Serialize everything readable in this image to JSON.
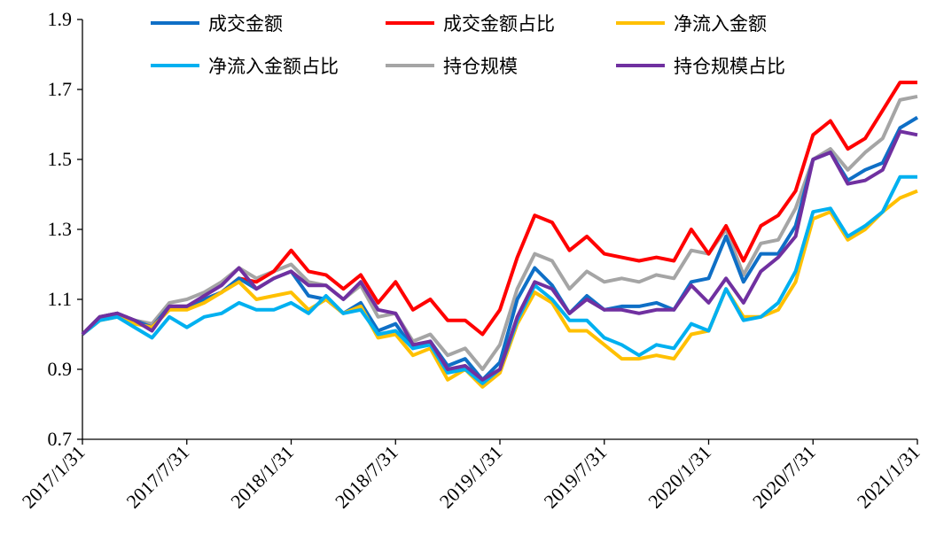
{
  "chart_data": {
    "type": "line",
    "title": "",
    "xlabel": "",
    "ylabel": "",
    "ylim": [
      0.7,
      1.9
    ],
    "yticks": [
      "0.7",
      "0.9",
      "1.1",
      "1.3",
      "1.5",
      "1.7",
      "1.9"
    ],
    "xticks": [
      "2017/1/31",
      "2017/7/31",
      "2018/1/31",
      "2018/7/31",
      "2019/1/31",
      "2019/7/31",
      "2020/1/31",
      "2020/7/31",
      "2021/1/31"
    ],
    "x_start": "2017/1/31",
    "x_end": "2021/1/31",
    "x_frequency": "monthly",
    "grid": false,
    "legend_position": "top",
    "series": [
      {
        "name": "成交金额",
        "color": "#0F6FC6",
        "values": [
          1.0,
          1.05,
          1.06,
          1.04,
          1.02,
          1.08,
          1.08,
          1.1,
          1.12,
          1.16,
          1.13,
          1.16,
          1.18,
          1.11,
          1.1,
          1.06,
          1.09,
          1.01,
          1.03,
          0.96,
          0.98,
          0.91,
          0.93,
          0.87,
          0.92,
          1.1,
          1.19,
          1.14,
          1.06,
          1.11,
          1.07,
          1.08,
          1.08,
          1.09,
          1.07,
          1.15,
          1.16,
          1.28,
          1.15,
          1.23,
          1.23,
          1.31,
          1.5,
          1.52,
          1.44,
          1.47,
          1.49,
          1.59,
          1.62
        ]
      },
      {
        "name": "成交金额占比",
        "color": "#FF0000",
        "values": [
          1.0,
          1.05,
          1.06,
          1.04,
          1.02,
          1.08,
          1.08,
          1.1,
          1.12,
          1.16,
          1.15,
          1.18,
          1.24,
          1.18,
          1.17,
          1.13,
          1.17,
          1.09,
          1.15,
          1.07,
          1.1,
          1.04,
          1.04,
          1.0,
          1.07,
          1.22,
          1.34,
          1.32,
          1.24,
          1.28,
          1.23,
          1.22,
          1.21,
          1.22,
          1.21,
          1.3,
          1.23,
          1.31,
          1.21,
          1.31,
          1.34,
          1.41,
          1.57,
          1.61,
          1.53,
          1.56,
          1.64,
          1.72,
          1.72
        ]
      },
      {
        "name": "净流入金额",
        "color": "#FFC000",
        "values": [
          1.0,
          1.04,
          1.05,
          1.03,
          1.02,
          1.07,
          1.07,
          1.09,
          1.12,
          1.15,
          1.1,
          1.11,
          1.12,
          1.07,
          1.1,
          1.06,
          1.08,
          0.99,
          1.0,
          0.94,
          0.96,
          0.87,
          0.9,
          0.85,
          0.89,
          1.03,
          1.12,
          1.09,
          1.01,
          1.01,
          0.97,
          0.93,
          0.93,
          0.94,
          0.93,
          1.0,
          1.01,
          1.13,
          1.05,
          1.05,
          1.07,
          1.15,
          1.33,
          1.35,
          1.27,
          1.3,
          1.35,
          1.39,
          1.41
        ]
      },
      {
        "name": "净流入金额占比",
        "color": "#00B0F0",
        "values": [
          1.0,
          1.04,
          1.05,
          1.02,
          0.99,
          1.05,
          1.02,
          1.05,
          1.06,
          1.09,
          1.07,
          1.07,
          1.09,
          1.06,
          1.11,
          1.06,
          1.07,
          1.0,
          1.01,
          0.96,
          0.97,
          0.89,
          0.9,
          0.86,
          0.9,
          1.04,
          1.14,
          1.1,
          1.04,
          1.04,
          0.99,
          0.97,
          0.94,
          0.97,
          0.96,
          1.03,
          1.01,
          1.13,
          1.04,
          1.05,
          1.09,
          1.18,
          1.35,
          1.36,
          1.28,
          1.31,
          1.35,
          1.45,
          1.45
        ]
      },
      {
        "name": "持仓规模",
        "color": "#A5A5A5",
        "values": [
          1.0,
          1.05,
          1.05,
          1.04,
          1.03,
          1.09,
          1.1,
          1.12,
          1.15,
          1.19,
          1.16,
          1.18,
          1.2,
          1.15,
          1.14,
          1.1,
          1.14,
          1.05,
          1.06,
          0.98,
          1.0,
          0.94,
          0.96,
          0.9,
          0.97,
          1.13,
          1.23,
          1.21,
          1.13,
          1.18,
          1.15,
          1.16,
          1.15,
          1.17,
          1.16,
          1.24,
          1.23,
          1.3,
          1.17,
          1.26,
          1.27,
          1.36,
          1.5,
          1.53,
          1.47,
          1.52,
          1.56,
          1.67,
          1.68
        ]
      },
      {
        "name": "持仓规模占比",
        "color": "#7030A0",
        "values": [
          1.0,
          1.05,
          1.06,
          1.04,
          1.01,
          1.08,
          1.08,
          1.11,
          1.14,
          1.19,
          1.13,
          1.16,
          1.18,
          1.14,
          1.14,
          1.1,
          1.15,
          1.07,
          1.06,
          0.97,
          0.98,
          0.9,
          0.91,
          0.87,
          0.9,
          1.05,
          1.15,
          1.13,
          1.06,
          1.1,
          1.07,
          1.07,
          1.06,
          1.07,
          1.07,
          1.14,
          1.09,
          1.16,
          1.09,
          1.18,
          1.22,
          1.28,
          1.5,
          1.52,
          1.43,
          1.44,
          1.47,
          1.58,
          1.57
        ]
      }
    ]
  }
}
